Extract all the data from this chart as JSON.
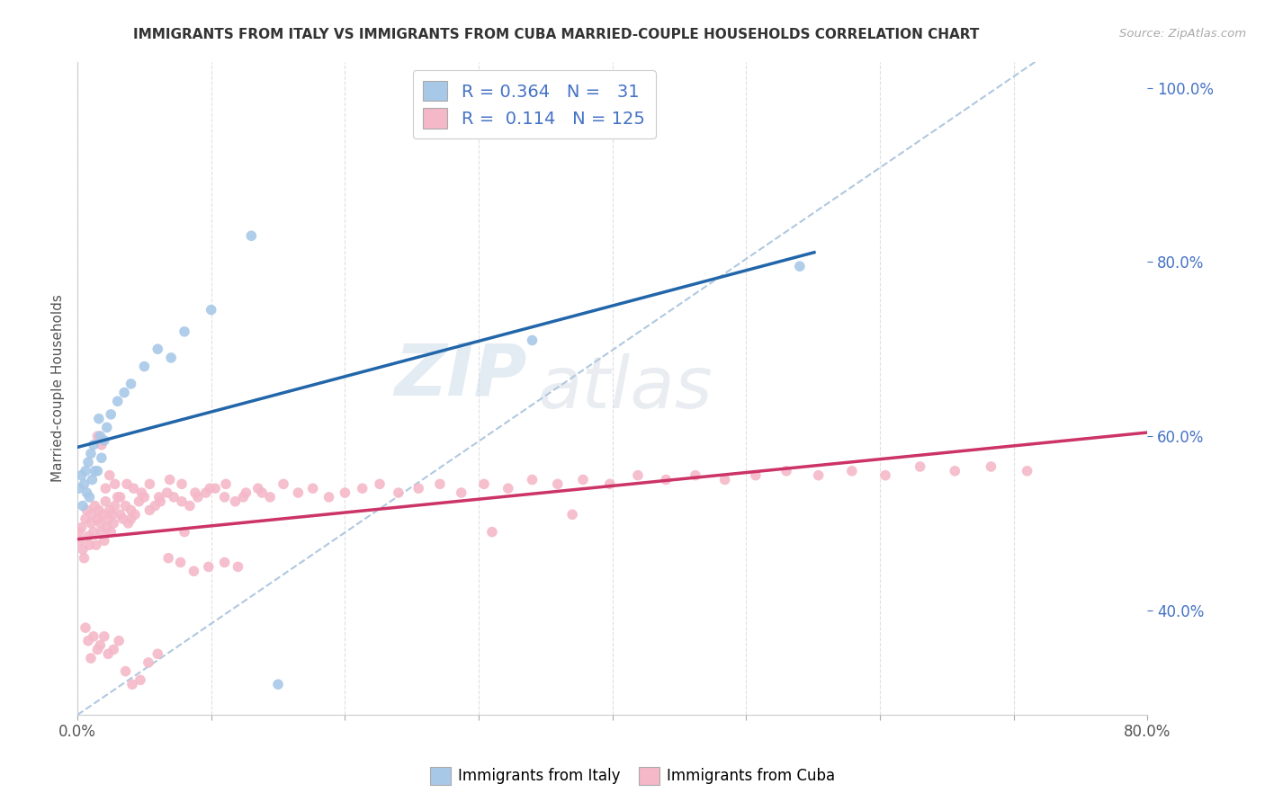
{
  "title": "IMMIGRANTS FROM ITALY VS IMMIGRANTS FROM CUBA MARRIED-COUPLE HOUSEHOLDS CORRELATION CHART",
  "source_text": "Source: ZipAtlas.com",
  "ylabel": "Married-couple Households",
  "italy_color": "#a8c8e8",
  "italy_edge_color": "#6baed6",
  "cuba_color": "#f4b8c8",
  "cuba_edge_color": "#e07090",
  "italy_R": 0.364,
  "italy_N": 31,
  "cuba_R": 0.114,
  "cuba_N": 125,
  "italy_trend_color": "#2266aa",
  "cuba_trend_color": "#cc3366",
  "ref_line_color": "#b0c8e0",
  "xlim": [
    0.0,
    0.8
  ],
  "ylim": [
    0.28,
    1.03
  ],
  "yticks_right": [
    0.4,
    0.6,
    0.8,
    1.0
  ],
  "ytick_right_labels": [
    "40.0%",
    "60.0%",
    "80.0%",
    "100.0%"
  ],
  "italy_x": [
    0.001,
    0.003,
    0.004,
    0.005,
    0.006,
    0.007,
    0.008,
    0.009,
    0.01,
    0.011,
    0.012,
    0.013,
    0.015,
    0.016,
    0.017,
    0.018,
    0.02,
    0.022,
    0.025,
    0.03,
    0.035,
    0.04,
    0.05,
    0.06,
    0.07,
    0.08,
    0.1,
    0.13,
    0.15,
    0.34,
    0.54
  ],
  "italy_y": [
    0.54,
    0.555,
    0.52,
    0.545,
    0.56,
    0.535,
    0.57,
    0.53,
    0.58,
    0.55,
    0.59,
    0.56,
    0.56,
    0.62,
    0.6,
    0.575,
    0.595,
    0.61,
    0.625,
    0.64,
    0.65,
    0.66,
    0.68,
    0.7,
    0.69,
    0.72,
    0.745,
    0.83,
    0.315,
    0.71,
    0.795
  ],
  "cuba_x": [
    0.001,
    0.002,
    0.003,
    0.004,
    0.005,
    0.006,
    0.007,
    0.008,
    0.009,
    0.01,
    0.011,
    0.012,
    0.013,
    0.014,
    0.015,
    0.016,
    0.017,
    0.018,
    0.019,
    0.02,
    0.021,
    0.022,
    0.023,
    0.024,
    0.025,
    0.026,
    0.027,
    0.028,
    0.03,
    0.032,
    0.034,
    0.036,
    0.038,
    0.04,
    0.043,
    0.046,
    0.05,
    0.054,
    0.058,
    0.062,
    0.067,
    0.072,
    0.078,
    0.084,
    0.09,
    0.096,
    0.103,
    0.11,
    0.118,
    0.126,
    0.135,
    0.144,
    0.154,
    0.165,
    0.176,
    0.188,
    0.2,
    0.213,
    0.226,
    0.24,
    0.255,
    0.271,
    0.287,
    0.304,
    0.322,
    0.34,
    0.359,
    0.378,
    0.398,
    0.419,
    0.44,
    0.462,
    0.484,
    0.507,
    0.53,
    0.554,
    0.579,
    0.604,
    0.63,
    0.656,
    0.683,
    0.71,
    0.015,
    0.018,
    0.021,
    0.024,
    0.028,
    0.032,
    0.037,
    0.042,
    0.048,
    0.054,
    0.061,
    0.069,
    0.078,
    0.088,
    0.099,
    0.111,
    0.124,
    0.138,
    0.006,
    0.008,
    0.01,
    0.012,
    0.015,
    0.017,
    0.02,
    0.023,
    0.027,
    0.031,
    0.036,
    0.041,
    0.047,
    0.053,
    0.06,
    0.068,
    0.077,
    0.087,
    0.098,
    0.11,
    0.04,
    0.08,
    0.12,
    0.31,
    0.37
  ],
  "cuba_y": [
    0.49,
    0.48,
    0.495,
    0.47,
    0.46,
    0.505,
    0.515,
    0.485,
    0.475,
    0.5,
    0.51,
    0.49,
    0.52,
    0.475,
    0.505,
    0.515,
    0.5,
    0.49,
    0.51,
    0.48,
    0.525,
    0.495,
    0.505,
    0.515,
    0.49,
    0.51,
    0.5,
    0.52,
    0.53,
    0.51,
    0.505,
    0.52,
    0.5,
    0.515,
    0.51,
    0.525,
    0.53,
    0.515,
    0.52,
    0.525,
    0.535,
    0.53,
    0.525,
    0.52,
    0.53,
    0.535,
    0.54,
    0.53,
    0.525,
    0.535,
    0.54,
    0.53,
    0.545,
    0.535,
    0.54,
    0.53,
    0.535,
    0.54,
    0.545,
    0.535,
    0.54,
    0.545,
    0.535,
    0.545,
    0.54,
    0.55,
    0.545,
    0.55,
    0.545,
    0.555,
    0.55,
    0.555,
    0.55,
    0.555,
    0.56,
    0.555,
    0.56,
    0.555,
    0.565,
    0.56,
    0.565,
    0.56,
    0.6,
    0.59,
    0.54,
    0.555,
    0.545,
    0.53,
    0.545,
    0.54,
    0.535,
    0.545,
    0.53,
    0.55,
    0.545,
    0.535,
    0.54,
    0.545,
    0.53,
    0.535,
    0.38,
    0.365,
    0.345,
    0.37,
    0.355,
    0.36,
    0.37,
    0.35,
    0.355,
    0.365,
    0.33,
    0.315,
    0.32,
    0.34,
    0.35,
    0.46,
    0.455,
    0.445,
    0.45,
    0.455,
    0.505,
    0.49,
    0.45,
    0.49,
    0.51
  ],
  "watermark_zip": "ZIP",
  "watermark_atlas": "atlas",
  "bg_color": "#ffffff",
  "grid_color": "#e0e0e0",
  "legend_italy_label": "R = 0.364   N =   31",
  "legend_cuba_label": "R =  0.114   N = 125",
  "bottom_legend_italy": "Immigrants from Italy",
  "bottom_legend_cuba": "Immigrants from Cuba"
}
